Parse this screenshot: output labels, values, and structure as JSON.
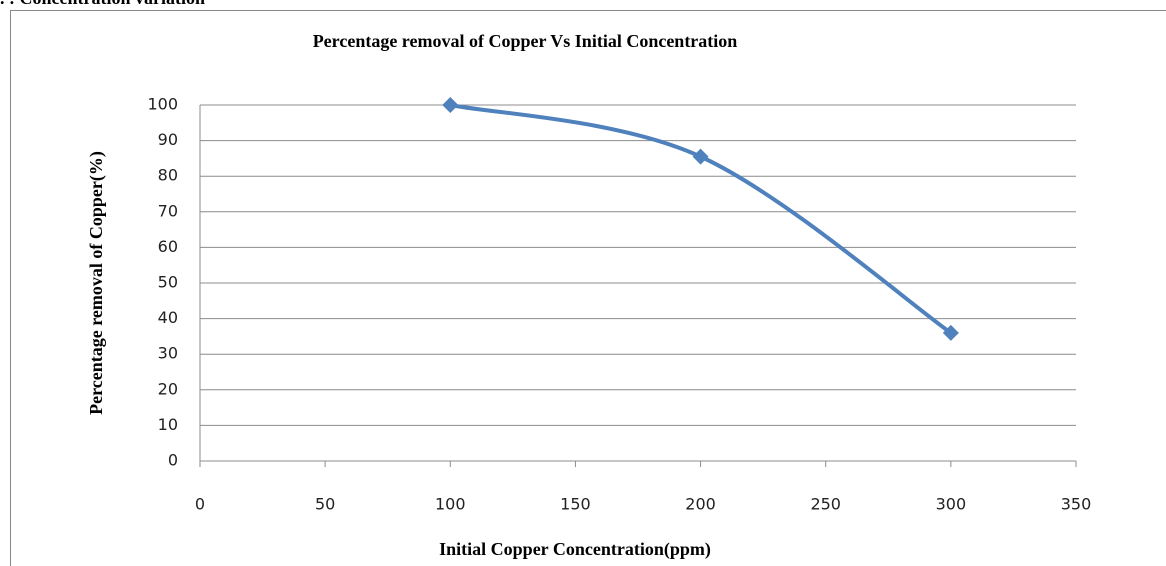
{
  "heading": ". : Concentration variation",
  "chart_data": {
    "type": "line",
    "title": "Percentage removal of Copper Vs Initial Concentration",
    "x_label": "Initial Copper Concentration(ppm)",
    "y_label": "Percentage removal of Copper(%)",
    "x": [
      100,
      200,
      300
    ],
    "series": [
      {
        "name": "Percentage removal of Copper",
        "color": "#4f81bd",
        "values": [
          100,
          85.5,
          36
        ]
      }
    ],
    "xlim": [
      0,
      350
    ],
    "xticks": [
      0,
      50,
      100,
      150,
      200,
      250,
      300,
      350
    ],
    "ylim": [
      0,
      100
    ],
    "yticks": [
      0,
      10,
      20,
      30,
      40,
      50,
      60,
      70,
      80,
      90,
      100
    ],
    "grid": true,
    "smooth": true
  }
}
